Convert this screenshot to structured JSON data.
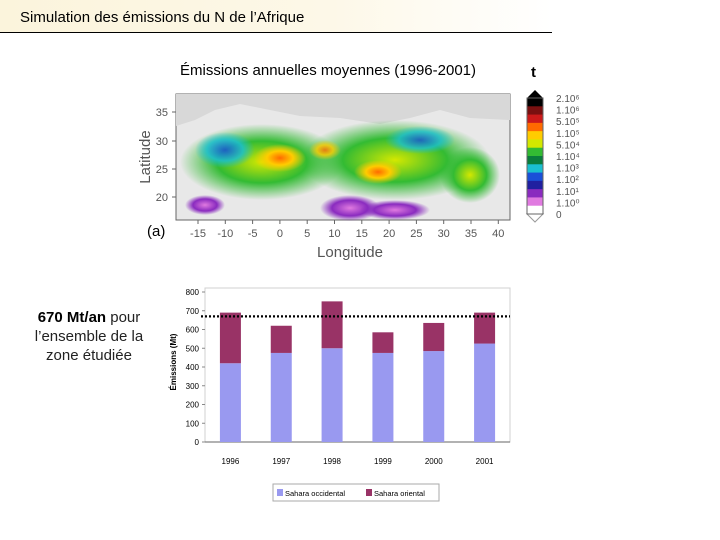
{
  "page": {
    "title": "Simulation des émissions du N de l’Afrique",
    "side_note_bold": "670 Mt/an",
    "side_note_rest": " pour l’ensemble de la zone étudiée"
  },
  "map": {
    "title": "Émissions annuelles moyennes (1996-2001)",
    "unit": "t",
    "panel_label": "(a)",
    "xlabel": "Longitude",
    "ylabel": "Latitude",
    "xticks": [
      "-15",
      "-10",
      "-5",
      "0",
      "5",
      "10",
      "15",
      "20",
      "25",
      "30",
      "35",
      "40"
    ],
    "yticks": [
      "35",
      "30",
      "25",
      "20"
    ],
    "colorbar_labels": [
      "2.10⁶",
      "1.10⁶",
      "5.10⁵",
      "1.10⁵",
      "5.10⁴",
      "1.10⁴",
      "1.10³",
      "1.10²",
      "1.10¹",
      "1.10⁰",
      "0"
    ],
    "colorbar_colors": [
      "#000000",
      "#7a1010",
      "#cc1a1a",
      "#ff6a00",
      "#ffcc00",
      "#d4e800",
      "#33bb33",
      "#0a7d3c",
      "#1abfd0",
      "#1a50d8",
      "#2020a0",
      "#8a2bbf",
      "#e07ae0",
      "#ffffff"
    ]
  },
  "chart_data": {
    "type": "bar",
    "stacked": true,
    "categories": [
      "1996",
      "1997",
      "1998",
      "1999",
      "2000",
      "2001"
    ],
    "series": [
      {
        "name": "Sahara occidental",
        "color": "#9999f0",
        "values": [
          420,
          475,
          500,
          475,
          485,
          525
        ]
      },
      {
        "name": "Sahara oriental",
        "color": "#993366",
        "values": [
          270,
          145,
          250,
          110,
          150,
          165
        ]
      }
    ],
    "ylabel": "Émissions (Mt)",
    "ylim": [
      0,
      800
    ],
    "yticks": [
      0,
      100,
      200,
      300,
      400,
      500,
      600,
      700,
      800
    ],
    "reference_line": 670,
    "grid": false,
    "legend": "bottom"
  }
}
